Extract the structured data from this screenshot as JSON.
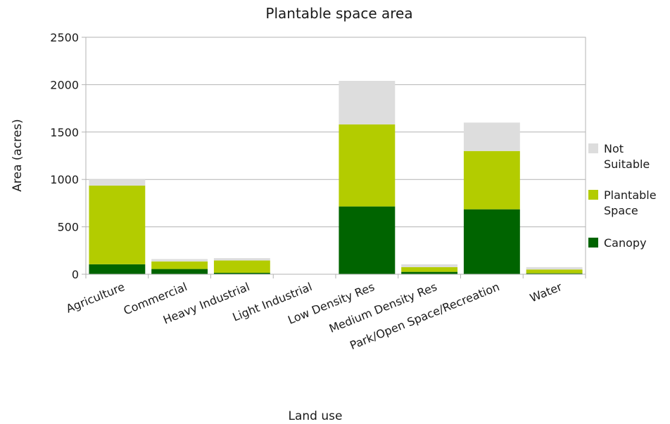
{
  "chart_data": {
    "type": "bar",
    "stacked": true,
    "title": "Plantable space area",
    "xlabel": "Land use",
    "ylabel": "Area (acres)",
    "ylim": [
      0,
      2500
    ],
    "yticks": [
      0,
      500,
      1000,
      1500,
      2000,
      2500
    ],
    "grid": true,
    "legend_position": "right",
    "categories": [
      "Agriculture",
      "Commercial",
      "Heavy Industrial",
      "Light Industrial",
      "Low Density Res",
      "Medium Density Res",
      "Park/Open Space/Recreation",
      "Water"
    ],
    "series": [
      {
        "name": "Canopy",
        "color": "#006400",
        "values": [
          105,
          55,
          15,
          0,
          715,
          25,
          685,
          10
        ]
      },
      {
        "name": "Plantable Space",
        "color": "#b3cc00",
        "values": [
          830,
          80,
          130,
          0,
          865,
          50,
          615,
          40
        ]
      },
      {
        "name": "Not Suitable",
        "color": "#dddddd",
        "values": [
          65,
          25,
          25,
          0,
          460,
          30,
          300,
          25
        ]
      }
    ],
    "legend": [
      {
        "lines": [
          "Not",
          "Suitable"
        ],
        "color": "#dddddd"
      },
      {
        "lines": [
          "Plantable",
          "Space"
        ],
        "color": "#b3cc00"
      },
      {
        "lines": [
          "Canopy"
        ],
        "color": "#006400"
      }
    ]
  }
}
